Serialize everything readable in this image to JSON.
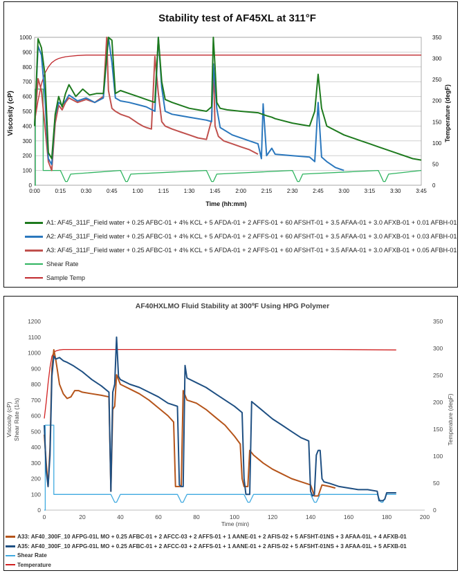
{
  "chart_data": [
    {
      "type": "line",
      "title": "Stability test of AF45XL at 311°F",
      "xlabel": "Time (hh:mm)",
      "ylabel": "Viscosity (cP)",
      "y2label": "Temperature (degF)",
      "x_ticks": [
        "0:00",
        "0:15",
        "0:30",
        "0:45",
        "1:00",
        "1:15",
        "1:30",
        "1:45",
        "2:00",
        "2:15",
        "2:30",
        "2:45",
        "3:00",
        "3:15",
        "3:30",
        "3:45"
      ],
      "x_tick_minutes": [
        0,
        15,
        30,
        45,
        60,
        75,
        90,
        105,
        120,
        135,
        150,
        165,
        180,
        195,
        210,
        225
      ],
      "xlim": [
        0,
        225
      ],
      "ylim": [
        0,
        1000
      ],
      "y_ticks": [
        0,
        100,
        200,
        300,
        400,
        500,
        600,
        700,
        800,
        900,
        1000
      ],
      "y2lim": [
        0,
        350
      ],
      "y2_ticks": [
        0,
        50,
        100,
        150,
        200,
        250,
        300,
        350
      ],
      "grid": true,
      "legend_position": "bottom",
      "series": [
        {
          "name": "A1: AF45_311F_Field water + 0.25 AFBC-01 + 4% KCL + 5 AFDA-01 + 2 AFFS-01 + 60 AFSHT-01  + 3.5 AFAA-01 + 3.0 AFXB-01 + 0.01 AFBH-01",
          "color": "#1e7a1e",
          "axis": "left",
          "x": [
            0,
            2,
            4,
            6,
            8,
            10,
            12,
            14,
            16,
            18,
            20,
            24,
            28,
            32,
            36,
            40,
            43,
            45,
            47,
            50,
            55,
            60,
            65,
            70,
            72,
            74,
            76,
            80,
            85,
            90,
            95,
            100,
            103,
            104,
            105,
            106,
            108,
            112,
            120,
            130,
            135,
            138,
            140,
            150,
            160,
            163,
            165,
            167,
            170,
            180,
            190,
            195,
            200,
            210,
            220,
            225
          ],
          "y": [
            400,
            990,
            930,
            750,
            220,
            180,
            480,
            600,
            530,
            620,
            680,
            600,
            650,
            610,
            620,
            620,
            1000,
            980,
            620,
            640,
            620,
            600,
            580,
            560,
            1000,
            700,
            580,
            560,
            540,
            520,
            510,
            500,
            530,
            1000,
            800,
            560,
            520,
            510,
            500,
            490,
            470,
            460,
            450,
            420,
            400,
            500,
            750,
            520,
            400,
            340,
            300,
            280,
            260,
            220,
            180,
            170
          ]
        },
        {
          "name": "A2: AF45_311F_Field water + 0.25 AFBC-01 + 4% KCL + 5 AFDA-01 + 2 AFFS-01 + 60 AFSHT-01  + 3.5 AFAA-01 + 3.0 AFXB-01 + 0.03 AFBH-01",
          "color": "#2a77bd",
          "axis": "left",
          "x": [
            0,
            2,
            4,
            6,
            8,
            10,
            12,
            14,
            16,
            18,
            20,
            25,
            30,
            35,
            40,
            43,
            45,
            47,
            50,
            55,
            60,
            65,
            70,
            72,
            74,
            76,
            80,
            90,
            100,
            103,
            104,
            106,
            108,
            115,
            125,
            130,
            132,
            133,
            135,
            138,
            140,
            150,
            160,
            163,
            165,
            167,
            170,
            175,
            180
          ],
          "y": [
            400,
            940,
            880,
            600,
            180,
            140,
            470,
            560,
            540,
            570,
            610,
            570,
            590,
            560,
            590,
            1000,
            830,
            590,
            570,
            560,
            545,
            530,
            500,
            1000,
            660,
            500,
            480,
            460,
            440,
            430,
            820,
            520,
            390,
            340,
            300,
            280,
            180,
            550,
            200,
            250,
            210,
            200,
            190,
            160,
            560,
            190,
            160,
            120,
            100
          ]
        },
        {
          "name": "A3: AF45_311F_Field water + 0.25 AFBC-01 + 4% KCL + 5 AFDA-01 + 2 AFFS-01 + 60 AFSHT-01  + 3.5 AFAA-01 + 3.0 AFXB-01 + 0.05 AFBH-01",
          "color": "#c0504d",
          "axis": "left",
          "x": [
            0,
            2,
            4,
            6,
            8,
            10,
            12,
            14,
            16,
            18,
            20,
            25,
            30,
            35,
            40,
            42,
            43,
            45,
            47,
            50,
            55,
            60,
            63,
            65,
            68,
            70,
            72,
            74,
            76,
            80,
            85,
            90,
            95,
            100,
            103,
            104,
            105,
            107,
            110,
            115,
            120,
            125,
            130
          ],
          "y": [
            400,
            720,
            640,
            400,
            160,
            100,
            420,
            540,
            510,
            560,
            590,
            560,
            580,
            560,
            600,
            1000,
            640,
            520,
            500,
            480,
            460,
            420,
            400,
            390,
            380,
            870,
            620,
            430,
            400,
            380,
            360,
            340,
            320,
            310,
            440,
            820,
            400,
            330,
            300,
            280,
            260,
            240,
            210
          ]
        },
        {
          "name": "Shear Rate",
          "color": "#2db35e",
          "axis": "left",
          "x": [
            0,
            0.5,
            0.5,
            5,
            5,
            15,
            16,
            17,
            18,
            18.5,
            19,
            20,
            21,
            50,
            51,
            52,
            53,
            53.5,
            54,
            55,
            56,
            100,
            101,
            102,
            103,
            103.5,
            104,
            105,
            106,
            150,
            151,
            152,
            153,
            153.5,
            154,
            155,
            156,
            200,
            201,
            202,
            203,
            203.5,
            204,
            205,
            206,
            225
          ],
          "y": [
            0,
            0,
            650,
            650,
            100,
            100,
            75,
            50,
            25,
            25,
            25,
            50,
            75,
            100,
            75,
            50,
            25,
            25,
            25,
            50,
            75,
            100,
            75,
            50,
            25,
            25,
            25,
            50,
            75,
            100,
            75,
            50,
            25,
            25,
            25,
            50,
            75,
            100,
            75,
            50,
            25,
            25,
            25,
            50,
            75,
            100
          ]
        },
        {
          "name": "Sample Temp",
          "color": "#c0282d",
          "axis": "right",
          "x": [
            0,
            2,
            4,
            6,
            8,
            10,
            12,
            14,
            16,
            18,
            20,
            25,
            30,
            40,
            60,
            100,
            150,
            200,
            225
          ],
          "y": [
            150,
            200,
            240,
            265,
            280,
            290,
            296,
            300,
            302,
            304,
            305,
            307,
            308,
            308,
            308,
            308,
            308,
            308,
            308
          ]
        }
      ]
    },
    {
      "type": "line",
      "title": "AF40HXLMO Fluid Stability at 300ºF Using HPG Polymer",
      "xlabel": "Time (min)",
      "ylabel": "Viscosity (cP)",
      "ylabel2": "Shear Rate (1/s)",
      "y2label": "Temperature (degF)",
      "xlim": [
        0,
        200
      ],
      "x_ticks": [
        0,
        20,
        40,
        60,
        80,
        100,
        120,
        140,
        160,
        180,
        200
      ],
      "ylim": [
        0,
        1200
      ],
      "y_ticks": [
        0,
        100,
        200,
        300,
        400,
        500,
        600,
        700,
        800,
        900,
        1000,
        1100,
        1200
      ],
      "y2lim": [
        0,
        350
      ],
      "y2_ticks": [
        0,
        50,
        100,
        150,
        200,
        250,
        300,
        350
      ],
      "grid": false,
      "legend_position": "bottom",
      "series": [
        {
          "name": "A33: AF40_300F_10 AFPG-01L MO + 0.25 AFBC-01 + 2 AFCC-03 + 2 AFFS-01 + 1 AANE-01 + 2 AFIS-02 + 5 AFSHT-01NS + 3 AFAA-01L + 4 AFXB-01",
          "color": "#b5541a",
          "axis": "left",
          "x": [
            0,
            1,
            2,
            3,
            4,
            5,
            6,
            7,
            8,
            10,
            12,
            14,
            16,
            18,
            20,
            25,
            30,
            34,
            35,
            36,
            37,
            38,
            40,
            45,
            50,
            55,
            60,
            65,
            68,
            69,
            70,
            71,
            72,
            73,
            75,
            80,
            85,
            90,
            95,
            100,
            103,
            104,
            105,
            106,
            107,
            108,
            110,
            115,
            120,
            125,
            130,
            135,
            140,
            142,
            143,
            144,
            146,
            150,
            153
          ],
          "y": [
            480,
            300,
            150,
            400,
            900,
            1020,
            960,
            880,
            800,
            740,
            710,
            720,
            760,
            760,
            750,
            740,
            730,
            720,
            120,
            640,
            660,
            860,
            800,
            770,
            740,
            700,
            650,
            600,
            560,
            150,
            150,
            150,
            150,
            760,
            700,
            680,
            640,
            590,
            540,
            470,
            420,
            200,
            150,
            150,
            150,
            380,
            350,
            300,
            260,
            230,
            200,
            180,
            160,
            90,
            90,
            90,
            160,
            150,
            140
          ]
        },
        {
          "name": "A35: AF40_300F_10 AFPG-01L MO + 0.25 AFBC-01 + 2 AFCC-03 + 2 AFFS-01 + 1 AANE-01 + 2 AFIS-02 + 5 AFSHT-01NS + 3 AFAA-01L + 5 AFXB-01",
          "color": "#1e4f82",
          "axis": "left",
          "x": [
            0,
            1,
            2,
            3,
            4,
            5,
            6,
            8,
            10,
            12,
            15,
            20,
            25,
            30,
            34,
            35,
            36,
            37,
            38,
            39,
            40,
            45,
            50,
            55,
            60,
            65,
            70,
            71,
            72,
            73,
            74,
            75,
            80,
            85,
            90,
            95,
            100,
            104,
            105,
            106,
            107,
            108,
            109,
            110,
            115,
            120,
            125,
            130,
            135,
            139,
            140,
            141,
            142,
            143,
            144,
            145,
            146,
            147,
            150,
            155,
            160,
            165,
            170,
            175,
            176,
            177,
            178,
            179,
            180,
            181,
            185
          ],
          "y": [
            540,
            250,
            150,
            350,
            850,
            980,
            960,
            970,
            950,
            940,
            920,
            880,
            830,
            790,
            750,
            120,
            750,
            800,
            1100,
            850,
            830,
            800,
            780,
            750,
            720,
            680,
            660,
            160,
            150,
            150,
            920,
            840,
            810,
            780,
            740,
            700,
            660,
            620,
            200,
            100,
            100,
            100,
            690,
            680,
            630,
            580,
            540,
            500,
            460,
            440,
            120,
            90,
            100,
            350,
            380,
            380,
            200,
            180,
            170,
            150,
            140,
            130,
            130,
            120,
            60,
            60,
            60,
            70,
            110,
            110,
            110
          ]
        },
        {
          "name": "Shear Rate",
          "color": "#3fa9e0",
          "axis": "left",
          "x": [
            0,
            0.5,
            0.5,
            5,
            5,
            35,
            36,
            37,
            37.5,
            38,
            39,
            40,
            70,
            71,
            72,
            72.5,
            73,
            74,
            75,
            105,
            106,
            107,
            107.5,
            108,
            109,
            110,
            140,
            141,
            142,
            142.5,
            143,
            144,
            145,
            175,
            176,
            177,
            177.5,
            178,
            179,
            180,
            185
          ],
          "y": [
            0,
            0,
            540,
            540,
            100,
            100,
            75,
            50,
            50,
            50,
            75,
            100,
            100,
            75,
            50,
            50,
            50,
            75,
            100,
            100,
            75,
            50,
            50,
            50,
            75,
            100,
            100,
            75,
            50,
            50,
            50,
            75,
            100,
            100,
            75,
            50,
            50,
            50,
            75,
            100,
            100
          ]
        },
        {
          "name": "Temperature",
          "color": "#d12020",
          "axis": "right",
          "x": [
            0,
            1,
            2,
            3,
            4,
            5,
            6,
            8,
            10,
            15,
            20,
            40,
            100,
            150,
            185
          ],
          "y": [
            170,
            200,
            235,
            265,
            285,
            292,
            295,
            297,
            298,
            298,
            298,
            298,
            298,
            298,
            297
          ]
        }
      ]
    }
  ]
}
